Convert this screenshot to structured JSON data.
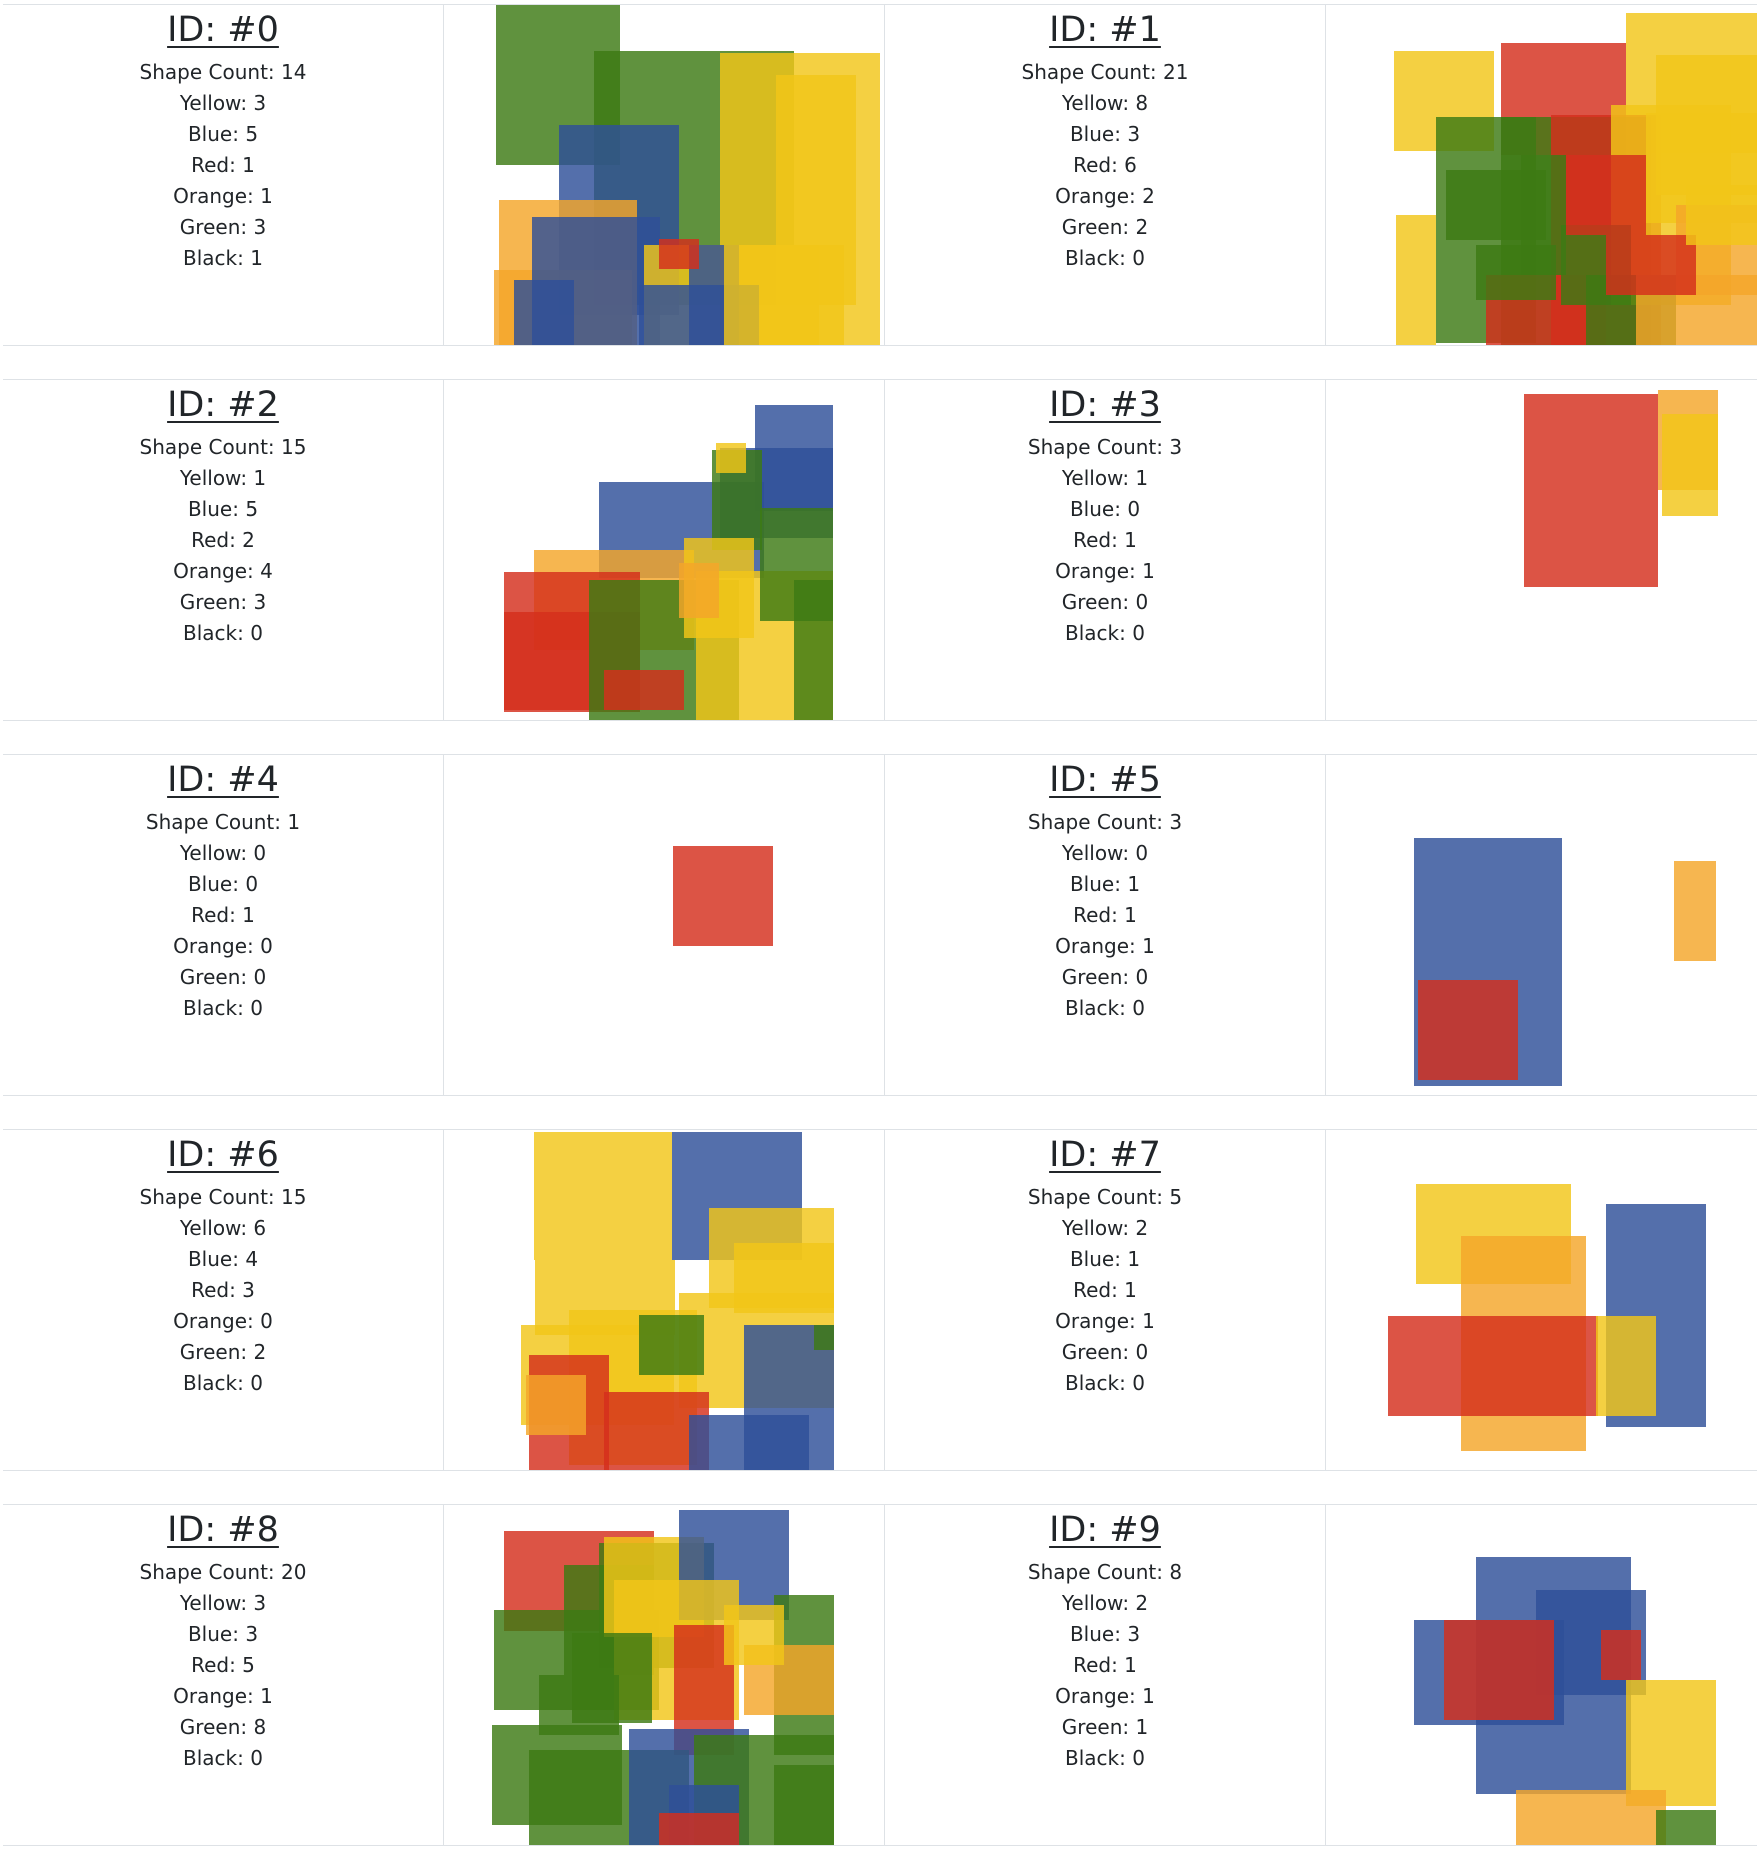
{
  "colors": {
    "Yellow": "#f2c618",
    "Blue": "#2e4f98",
    "Red": "#d42e1c",
    "Orange": "#f4a62a",
    "Green": "#3d7a13",
    "Black": "#000000"
  },
  "labels": {
    "shape_count": "Shape Count: ",
    "yellow": "Yellow: ",
    "blue": "Blue: ",
    "red": "Red: ",
    "orange": "Orange: ",
    "green": "Green: ",
    "black": "Black: "
  },
  "items": [
    {
      "id": "ID: #0",
      "shape_count": "14",
      "yellow": "3",
      "blue": "5",
      "red": "1",
      "orange": "1",
      "green": "3",
      "black": "1"
    },
    {
      "id": "ID: #1",
      "shape_count": "21",
      "yellow": "8",
      "blue": "3",
      "red": "6",
      "orange": "2",
      "green": "2",
      "black": "0"
    },
    {
      "id": "ID: #2",
      "shape_count": "15",
      "yellow": "1",
      "blue": "5",
      "red": "2",
      "orange": "4",
      "green": "3",
      "black": "0"
    },
    {
      "id": "ID: #3",
      "shape_count": "3",
      "yellow": "1",
      "blue": "0",
      "red": "1",
      "orange": "1",
      "green": "0",
      "black": "0"
    },
    {
      "id": "ID: #4",
      "shape_count": "1",
      "yellow": "0",
      "blue": "0",
      "red": "1",
      "orange": "0",
      "green": "0",
      "black": "0"
    },
    {
      "id": "ID: #5",
      "shape_count": "3",
      "yellow": "0",
      "blue": "1",
      "red": "1",
      "orange": "1",
      "green": "0",
      "black": "0"
    },
    {
      "id": "ID: #6",
      "shape_count": "15",
      "yellow": "6",
      "blue": "4",
      "red": "3",
      "orange": "0",
      "green": "2",
      "black": "0"
    },
    {
      "id": "ID: #7",
      "shape_count": "5",
      "yellow": "2",
      "blue": "1",
      "red": "1",
      "orange": "1",
      "green": "0",
      "black": "0"
    },
    {
      "id": "ID: #8",
      "shape_count": "20",
      "yellow": "3",
      "blue": "3",
      "red": "5",
      "orange": "1",
      "green": "8",
      "black": "0"
    },
    {
      "id": "ID: #9",
      "shape_count": "8",
      "yellow": "2",
      "blue": "3",
      "red": "1",
      "orange": "1",
      "green": "1",
      "black": "0"
    }
  ]
}
